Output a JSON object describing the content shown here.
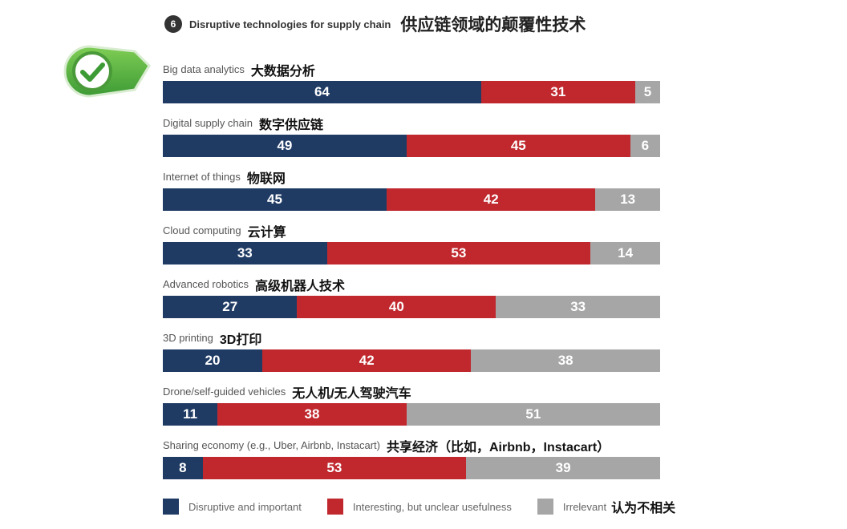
{
  "header": {
    "number": "6",
    "title_en": "Disruptive technologies for supply chain",
    "title_zh": "供应链领域的颠覆性技术"
  },
  "badge": {
    "icon": "check-icon",
    "color": "#4aa63a"
  },
  "colors": {
    "disruptive": "#1f3b64",
    "interesting": "#c0282e",
    "irrelevant": "#a6a6a6"
  },
  "chart_data": {
    "type": "bar",
    "orientation": "horizontal",
    "stacked": true,
    "title": "Disruptive technologies for supply chain",
    "categories": [
      "Big data analytics",
      "Digital supply chain",
      "Internet of things",
      "Cloud computing",
      "Advanced robotics",
      "3D printing",
      "Drone/self-guided vehicles",
      "Sharing economy (e.g., Uber, Airbnb, Instacart)"
    ],
    "categories_zh": [
      "大数据分析",
      "数字供应链",
      "物联网",
      "云计算",
      "高级机器人技术",
      "3D打印",
      "无人机/无人驾驶汽车",
      "共享经济（比如，Airbnb，Instacart）"
    ],
    "series": [
      {
        "name": "Disruptive and important",
        "values": [
          64,
          49,
          45,
          33,
          27,
          20,
          11,
          8
        ]
      },
      {
        "name": "Interesting, but unclear usefulness",
        "values": [
          31,
          45,
          42,
          53,
          40,
          42,
          38,
          53
        ]
      },
      {
        "name": "Irrelevant",
        "values": [
          5,
          6,
          13,
          14,
          33,
          38,
          51,
          39
        ]
      }
    ],
    "xlim": [
      0,
      100
    ],
    "legend_position": "bottom",
    "legend_zh_irrelevant": "认为不相关",
    "grid": false
  }
}
